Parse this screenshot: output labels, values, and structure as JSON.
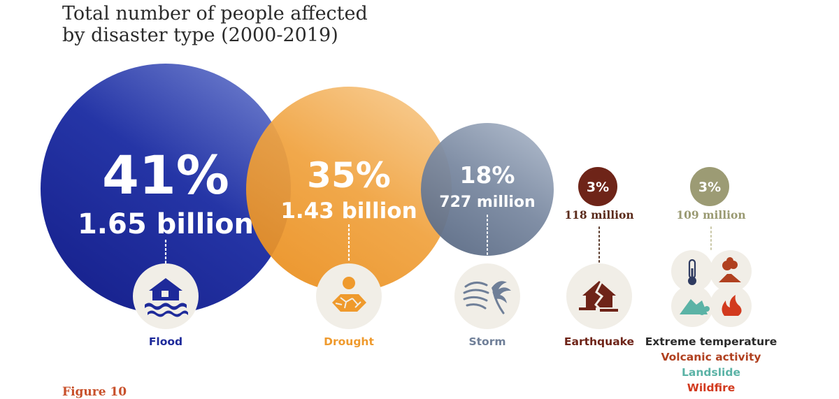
{
  "title_lines": [
    "Total number of people affected",
    "by disaster type (2000-2019)"
  ],
  "figure_label": "Figure 10",
  "colors": {
    "flood": "#1e2a9a",
    "drought": "#ef9a2d",
    "storm": "#6f7f98",
    "earthquake": "#6e2418",
    "other": "#9c9b74",
    "icon_bg": "#f1eee7",
    "dots_flood": "#ffffff",
    "dots_drought": "#ffffff",
    "dots_dark": "#5a3a2a",
    "dots_other": "#c9c7a6"
  },
  "chart_data": {
    "type": "bubble",
    "title": "Total number of people affected by disaster type (2000-2019)",
    "items": [
      {
        "category": "Flood",
        "share_percent": 41,
        "share_label": "41%",
        "people_affected": 1650000000,
        "amount_label": "1.65 billion",
        "icon": "flooded-house-icon"
      },
      {
        "category": "Drought",
        "share_percent": 35,
        "share_label": "35%",
        "people_affected": 1430000000,
        "amount_label": "1.43 billion",
        "icon": "drought-sun-cracked-earth-icon"
      },
      {
        "category": "Storm",
        "share_percent": 18,
        "share_label": "18%",
        "people_affected": 727000000,
        "amount_label": "727 million",
        "icon": "storm-wind-palm-icon"
      },
      {
        "category": "Earthquake",
        "share_percent": 3,
        "share_label": "3%",
        "people_affected": 118000000,
        "amount_label": "118 million",
        "icon": "cracked-house-icon"
      },
      {
        "category_lines": [
          "Extreme temperature",
          "Volcanic activity",
          "Landslide",
          "Wildfire"
        ],
        "share_percent": 3,
        "share_label": "3%",
        "people_affected": 109000000,
        "amount_label": "109 million",
        "icons": [
          "thermometer-icon",
          "volcano-icon",
          "landslide-icon",
          "wildfire-icon"
        ]
      }
    ],
    "category_colors": [
      "#1e2a9a",
      "#ef9a2d",
      "#6f7f98",
      "#6e2418",
      [
        "#2b2b2b",
        "#b0401f",
        "#5bb3a6",
        "#d23a1e"
      ]
    ]
  }
}
